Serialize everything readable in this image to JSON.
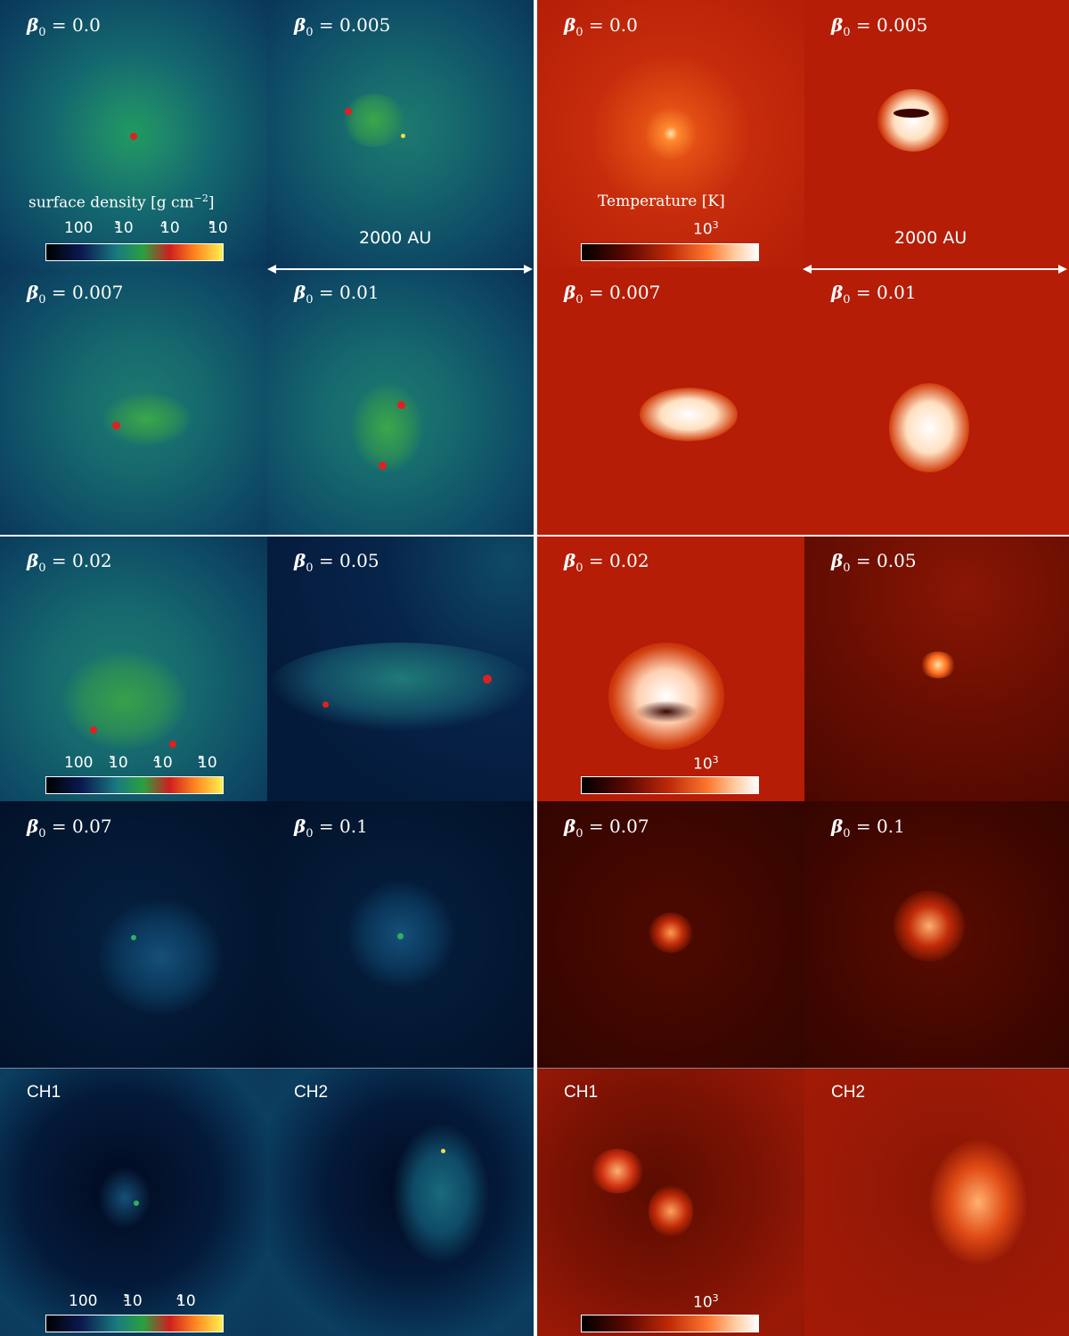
{
  "panels": [
    {
      "id": "p00",
      "label": "0.0",
      "beta": true
    },
    {
      "id": "p01",
      "label": "0.005",
      "beta": true
    },
    {
      "id": "p02",
      "label": "0.0",
      "beta": true
    },
    {
      "id": "p03",
      "label": "0.005",
      "beta": true
    },
    {
      "id": "p10",
      "label": "0.007",
      "beta": true
    },
    {
      "id": "p11",
      "label": "0.01",
      "beta": true
    },
    {
      "id": "p12",
      "label": "0.007",
      "beta": true
    },
    {
      "id": "p13",
      "label": "0.01",
      "beta": true
    },
    {
      "id": "p20",
      "label": "0.02",
      "beta": true
    },
    {
      "id": "p21",
      "label": "0.05",
      "beta": true
    },
    {
      "id": "p22",
      "label": "0.02",
      "beta": true
    },
    {
      "id": "p23",
      "label": "0.05",
      "beta": true
    },
    {
      "id": "p30",
      "label": "0.07",
      "beta": true
    },
    {
      "id": "p31",
      "label": "0.1",
      "beta": true
    },
    {
      "id": "p32",
      "label": "0.07",
      "beta": true
    },
    {
      "id": "p33",
      "label": "0.1",
      "beta": true
    },
    {
      "id": "p40",
      "label": "CH1",
      "beta": false
    },
    {
      "id": "p41",
      "label": "CH2",
      "beta": false
    },
    {
      "id": "p42",
      "label": "CH1",
      "beta": false
    },
    {
      "id": "p43",
      "label": "CH2",
      "beta": false
    }
  ],
  "beta_symbol": "β",
  "beta_subscript": "0",
  "equals": "=",
  "density_colorbar": {
    "title": "surface density [g cm",
    "title_exp": "−2",
    "title_close": "]",
    "ticks": [
      "100",
      "10",
      "10",
      "10"
    ],
    "tick_exps": [
      "",
      "3",
      "4",
      "5"
    ],
    "ticks_short": [
      "100",
      "10",
      "10"
    ],
    "ticks_short_exps": [
      "",
      "3",
      "4"
    ]
  },
  "temperature_colorbar": {
    "title": "Temperature [K]",
    "tick": "10",
    "tick_exp": "3"
  },
  "scale_bar": {
    "label": "2000 AU"
  },
  "colors": {
    "density_low": "#020a2a",
    "density_mid": "#1f8a6e",
    "density_high": "#d21e1e",
    "temp_bg": "#b51d07",
    "temp_dark": "#200000"
  }
}
